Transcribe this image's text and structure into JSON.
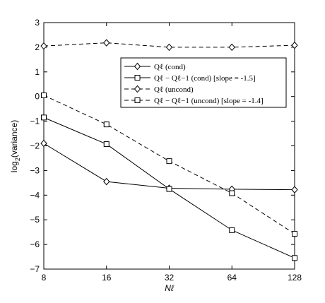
{
  "chart_data": {
    "type": "line",
    "x": [
      8,
      16,
      32,
      64,
      128
    ],
    "x_scale": "log2",
    "xlim": [
      8,
      128
    ],
    "ylim": [
      -7,
      3
    ],
    "x_ticks": [
      "8",
      "16",
      "32",
      "64",
      "128"
    ],
    "y_ticks": [
      "3",
      "2",
      "1",
      "0",
      "−1",
      "−2",
      "−3",
      "−4",
      "−5",
      "−6",
      "−7"
    ],
    "xlabel": "Nℓ",
    "ylabel": "log₂(variance)",
    "grid": false,
    "legend_position": "top-right",
    "series": [
      {
        "name": "Qℓ (cond)",
        "values": [
          -1.9,
          -3.45,
          -3.72,
          -3.76,
          -3.78
        ],
        "marker": "diamond",
        "style": "solid"
      },
      {
        "name": "Qℓ − Qℓ−1 (cond) [slope = -1.5]",
        "values": [
          -0.85,
          -1.93,
          -3.75,
          -5.42,
          -6.55
        ],
        "marker": "square",
        "style": "solid"
      },
      {
        "name": "Qℓ (uncond)",
        "values": [
          2.05,
          2.18,
          2.0,
          2.0,
          2.08
        ],
        "marker": "diamond",
        "style": "dashed"
      },
      {
        "name": "Qℓ − Qℓ−1 (uncond) [slope = -1.4]",
        "values": [
          0.05,
          -1.13,
          -2.62,
          -3.92,
          -5.57
        ],
        "marker": "square",
        "style": "dashed"
      }
    ]
  }
}
